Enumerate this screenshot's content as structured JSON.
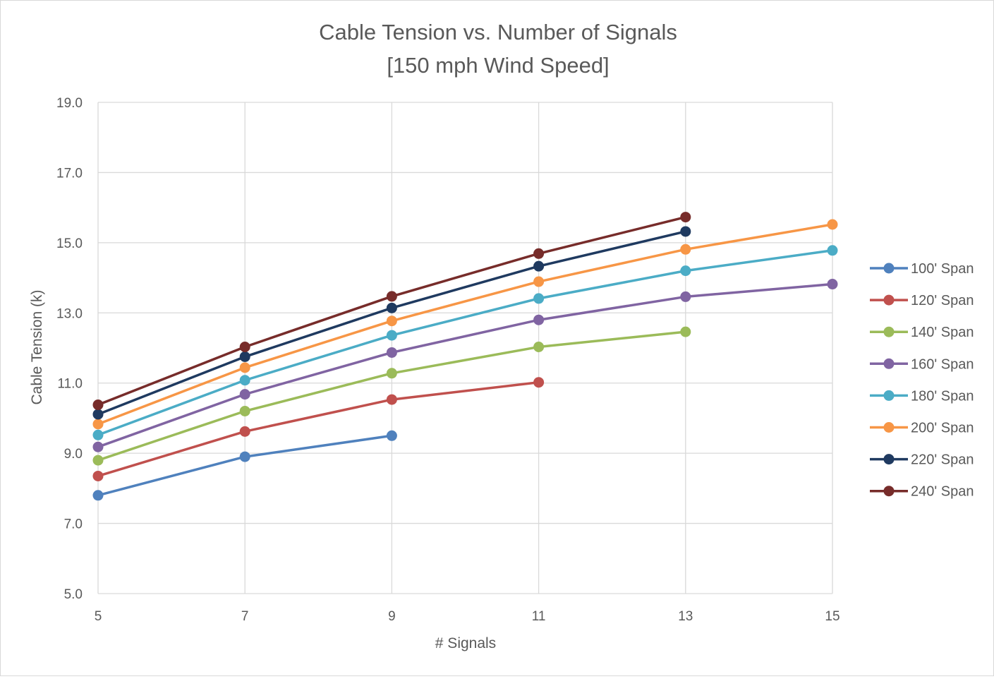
{
  "chart_data": {
    "type": "line",
    "title": [
      "Cable Tension vs. Number of Signals",
      "[150 mph Wind Speed]"
    ],
    "xlabel": "# Signals",
    "ylabel": "Cable Tension (k)",
    "x_ticks": [
      "5",
      "7",
      "9",
      "11",
      "13",
      "15"
    ],
    "y_ticks": [
      "5.0",
      "7.0",
      "9.0",
      "11.0",
      "13.0",
      "15.0",
      "17.0",
      "19.0"
    ],
    "xlim": [
      5,
      15
    ],
    "ylim": [
      5,
      19
    ],
    "grid": true,
    "legend_position": "right",
    "series": [
      {
        "name": "100' Span",
        "color": "#4f81bd",
        "x": [
          5,
          7,
          9
        ],
        "values": [
          7.8,
          8.9,
          9.5
        ]
      },
      {
        "name": "120' Span",
        "color": "#c0504d",
        "x": [
          5,
          7,
          9,
          11
        ],
        "values": [
          8.35,
          9.62,
          10.53,
          11.02
        ]
      },
      {
        "name": "140' Span",
        "color": "#9bbb59",
        "x": [
          5,
          7,
          9,
          11,
          13
        ],
        "values": [
          8.8,
          10.2,
          11.28,
          12.03,
          12.46
        ]
      },
      {
        "name": "160' Span",
        "color": "#8064a2",
        "x": [
          5,
          7,
          9,
          11,
          13,
          15
        ],
        "values": [
          9.18,
          10.68,
          11.87,
          12.8,
          13.46,
          13.82
        ]
      },
      {
        "name": "180' Span",
        "color": "#4bacc6",
        "x": [
          5,
          7,
          9,
          11,
          13,
          15
        ],
        "values": [
          9.52,
          11.08,
          12.36,
          13.41,
          14.2,
          14.78
        ]
      },
      {
        "name": "200' Span",
        "color": "#f79646",
        "x": [
          5,
          7,
          9,
          11,
          13,
          15
        ],
        "values": [
          9.83,
          11.44,
          12.77,
          13.89,
          14.81,
          15.52
        ]
      },
      {
        "name": "220' Span",
        "color": "#1f3a60",
        "x": [
          5,
          7,
          9,
          11,
          13
        ],
        "values": [
          10.11,
          11.75,
          13.14,
          14.33,
          15.32
        ]
      },
      {
        "name": "240' Span",
        "color": "#772c2a",
        "x": [
          5,
          7,
          9,
          11,
          13
        ],
        "values": [
          10.38,
          12.03,
          13.47,
          14.69,
          15.73
        ]
      }
    ]
  }
}
